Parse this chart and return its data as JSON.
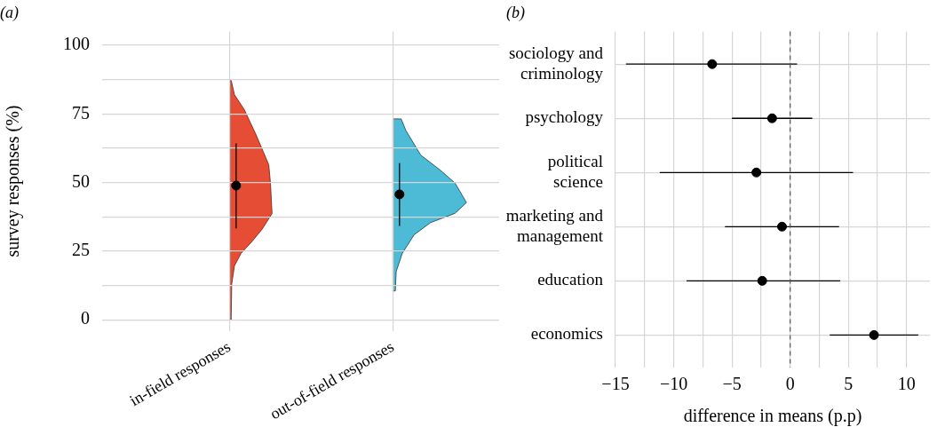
{
  "chart_data": [
    {
      "type": "scatter",
      "title": "(a)",
      "ylabel": "survey responses (%)",
      "categories": [
        "in-field responses",
        "out-of-field responses"
      ],
      "ylim": [
        -4,
        105
      ],
      "yticks": [
        0,
        {
          "value": 12.5,
          "label": null
        },
        25,
        {
          "value": 37.5,
          "label": null
        },
        50,
        {
          "value": 62.5,
          "label": null
        },
        75,
        {
          "value": 87.5,
          "label": null
        },
        100
      ],
      "grid": true,
      "legend": false,
      "marker": "circle",
      "series": [
        {
          "type": "scatter",
          "color": "#000000",
          "values": [
            48.9,
            45.7
          ],
          "errors": [
            [
              33.3,
              64.3
            ],
            [
              34.2,
              57.1
            ]
          ]
        }
      ]
    },
    {
      "type": "scatter",
      "title": "(b)",
      "xlabel": "difference in means (p.p)",
      "orientation": "horizontal",
      "categories": [
        "sociology and criminology",
        "psychology",
        "political science",
        "marketing and management",
        "education",
        "economics"
      ],
      "xlim": [
        -15,
        12
      ],
      "xticks": [
        -15,
        {
          "value": -12.5,
          "label": null
        },
        -10,
        {
          "value": -7.5,
          "label": null
        },
        -5,
        {
          "value": -2.5,
          "label": null
        },
        0,
        {
          "value": 2.5,
          "label": null
        },
        5,
        {
          "value": 7.5,
          "label": null
        },
        10
      ],
      "grid": true,
      "legend": false,
      "marker": "circle",
      "ref_lines": [
        {
          "axis": "x",
          "value": 0,
          "color": "#555555",
          "line_style": "dashed"
        }
      ],
      "series": [
        {
          "type": "scatter",
          "color": "#000000",
          "values": [
            -6.7,
            -1.55,
            -2.9,
            -0.7,
            -2.4,
            7.2
          ],
          "errors": [
            [
              -14.1,
              0.6
            ],
            [
              -5.0,
              1.9
            ],
            [
              -11.2,
              5.4
            ],
            [
              -5.6,
              4.2
            ],
            [
              -8.9,
              4.3
            ],
            [
              3.4,
              11.0
            ]
          ]
        }
      ]
    }
  ]
}
